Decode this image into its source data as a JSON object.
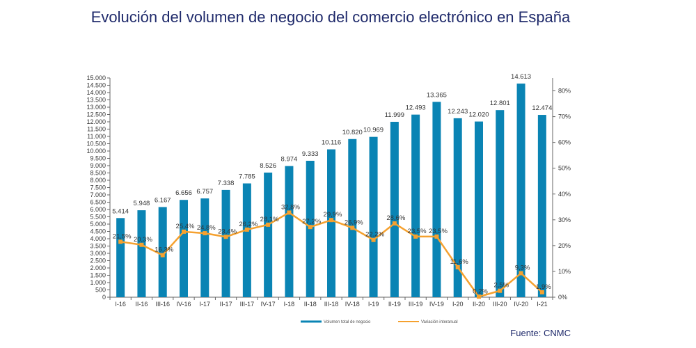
{
  "title": "Evolución del volumen de negocio del comercio electrónico en España",
  "source": "Fuente: CNMC",
  "colors": {
    "bar": "#0a84b4",
    "line": "#f5a12f",
    "title": "#1f2a6b"
  },
  "chart_data": {
    "type": "bar",
    "categories": [
      "I-16",
      "II-16",
      "III-16",
      "IV-16",
      "I-17",
      "II-17",
      "III-17",
      "IV-17",
      "I-18",
      "II-18",
      "III-18",
      "IV-18",
      "I-19",
      "II-19",
      "III-19",
      "IV-19",
      "I-20",
      "II-20",
      "III-20",
      "IV-20",
      "I-21"
    ],
    "bar_labels": [
      "5.414",
      "5.948",
      "6.167",
      "6.656",
      "6.757",
      "7.338",
      "7.785",
      "8.526",
      "8.974",
      "9.333",
      "10.116",
      "10.820",
      "10.969",
      "11.999",
      "12.493",
      "13.365",
      "12.243",
      "12.020",
      "12.801",
      "14.613",
      "12.474"
    ],
    "series": [
      {
        "name": "Volumen total de negocio",
        "type": "bar",
        "axis": "left",
        "values": [
          5414,
          5948,
          6167,
          6656,
          6757,
          7338,
          7785,
          8526,
          8974,
          9333,
          10116,
          10820,
          10969,
          11999,
          12493,
          13365,
          12243,
          12020,
          12801,
          14613,
          12474
        ]
      },
      {
        "name": "Variación interanual",
        "type": "line",
        "axis": "right",
        "values": [
          21.5,
          20.3,
          16.3,
          25.4,
          24.8,
          23.4,
          26.2,
          28.1,
          32.8,
          27.2,
          29.9,
          26.9,
          22.2,
          28.6,
          23.5,
          23.5,
          11.6,
          0.2,
          2.5,
          9.3,
          1.9
        ],
        "labels": [
          "21,5%",
          "20,3%",
          "16,3%",
          "25,4%",
          "24,8%",
          "23,4%",
          "26,2%",
          "28,1%",
          "32,8%",
          "27,2%",
          "29,9%",
          "26,9%",
          "22,2%",
          "28,6%",
          "23,5%",
          "23,5%",
          "11,6%",
          "0,2%",
          "2,5%",
          "9,3%",
          "1,9%"
        ]
      }
    ],
    "ylim": [
      0,
      15000
    ],
    "yticks": [
      0,
      500,
      1000,
      1500,
      2000,
      2500,
      3000,
      3500,
      4000,
      4500,
      5000,
      5500,
      6000,
      6500,
      7000,
      7500,
      8000,
      8500,
      9000,
      9500,
      10000,
      10500,
      11000,
      11500,
      12000,
      12500,
      13000,
      13500,
      14000,
      14500,
      15000
    ],
    "ytick_labels": [
      "0",
      "500",
      "1.000",
      "1.500",
      "2.000",
      "2.500",
      "3.000",
      "3.500",
      "4.000",
      "4.500",
      "5.000",
      "5.500",
      "6.000",
      "6.500",
      "7.000",
      "7.500",
      "8.000",
      "8.500",
      "9.000",
      "9.500",
      "10.000",
      "10.500",
      "11.000",
      "11.500",
      "12.000",
      "12.500",
      "13.000",
      "13.500",
      "14.000",
      "14.500",
      "15.000"
    ],
    "y2lim": [
      0,
      85
    ],
    "y2ticks": [
      0,
      10,
      20,
      30,
      40,
      50,
      60,
      70,
      80
    ],
    "y2tick_labels": [
      "0%",
      "10%",
      "20%",
      "30%",
      "40%",
      "50%",
      "60%",
      "70%",
      "80%"
    ],
    "legend": [
      "Volumen total de negocio",
      "Variación interanual"
    ],
    "legend_position": "bottom",
    "grid": false
  }
}
